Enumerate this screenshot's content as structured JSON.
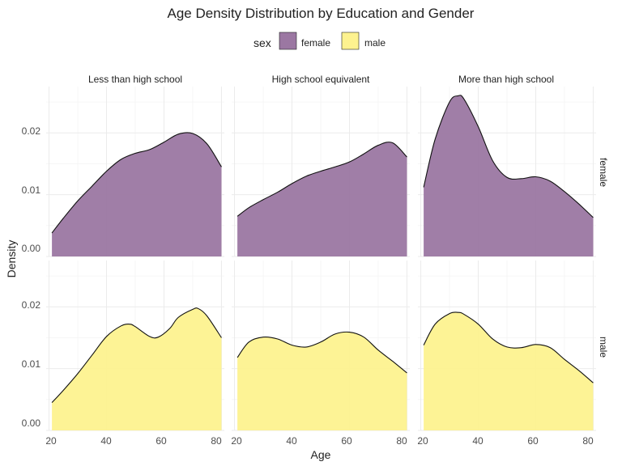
{
  "chart_data": {
    "type": "area",
    "title": "Age Density Distribution by Education and Gender",
    "xlabel": "Age",
    "ylabel": "Density",
    "xlim": [
      19,
      81
    ],
    "ylim": [
      0,
      0.0275
    ],
    "x_ticks": [
      "20",
      "40",
      "60",
      "80"
    ],
    "y_ticks": [
      "0.00",
      "0.01",
      "0.02"
    ],
    "grid": true,
    "legend": {
      "title": "sex",
      "placement": "top",
      "entries": [
        {
          "label": "female",
          "color": "#9b77a2"
        },
        {
          "label": "male",
          "color": "#fdf28f"
        }
      ]
    },
    "column_facets": [
      "Less than high school",
      "High school equivalent",
      "More than high school"
    ],
    "row_facets": [
      "female",
      "male"
    ],
    "panels": [
      {
        "row": "female",
        "column": "Less than high school",
        "x": [
          21,
          25,
          30,
          35,
          40,
          45,
          50,
          55,
          60,
          65,
          70,
          75,
          80
        ],
        "y": [
          0.0038,
          0.0062,
          0.009,
          0.0114,
          0.0138,
          0.0157,
          0.0167,
          0.0173,
          0.0185,
          0.0198,
          0.0199,
          0.0182,
          0.0145
        ]
      },
      {
        "row": "female",
        "column": "High school equivalent",
        "x": [
          21,
          25,
          30,
          35,
          40,
          45,
          50,
          55,
          60,
          65,
          70,
          75,
          80
        ],
        "y": [
          0.0065,
          0.0079,
          0.0092,
          0.0104,
          0.0118,
          0.013,
          0.0138,
          0.0145,
          0.0153,
          0.0166,
          0.018,
          0.0184,
          0.0161
        ]
      },
      {
        "row": "female",
        "column": "More than high school",
        "x": [
          21,
          25,
          30,
          33,
          35,
          40,
          45,
          50,
          55,
          60,
          65,
          70,
          75,
          80
        ],
        "y": [
          0.0112,
          0.019,
          0.025,
          0.026,
          0.0255,
          0.021,
          0.0155,
          0.0128,
          0.0126,
          0.0129,
          0.0122,
          0.0105,
          0.0085,
          0.0063
        ]
      },
      {
        "row": "male",
        "column": "Less than high school",
        "x": [
          21,
          25,
          30,
          35,
          40,
          45,
          48,
          50,
          55,
          58,
          62,
          65,
          70,
          72,
          75,
          80
        ],
        "y": [
          0.0045,
          0.0065,
          0.0092,
          0.0122,
          0.0152,
          0.0169,
          0.0172,
          0.0168,
          0.0152,
          0.0151,
          0.0165,
          0.0183,
          0.0196,
          0.0197,
          0.0185,
          0.015
        ]
      },
      {
        "row": "male",
        "column": "High school equivalent",
        "x": [
          21,
          25,
          30,
          35,
          40,
          45,
          50,
          55,
          60,
          65,
          70,
          75,
          80
        ],
        "y": [
          0.0118,
          0.0143,
          0.0151,
          0.0148,
          0.0138,
          0.0135,
          0.0143,
          0.0156,
          0.0159,
          0.0151,
          0.013,
          0.0112,
          0.0093
        ]
      },
      {
        "row": "male",
        "column": "More than high school",
        "x": [
          21,
          25,
          30,
          33,
          35,
          40,
          45,
          50,
          55,
          60,
          65,
          70,
          75,
          80
        ],
        "y": [
          0.0138,
          0.0172,
          0.0189,
          0.0191,
          0.0188,
          0.0172,
          0.0148,
          0.0135,
          0.0134,
          0.0139,
          0.0134,
          0.0115,
          0.0097,
          0.0077
        ]
      }
    ]
  }
}
